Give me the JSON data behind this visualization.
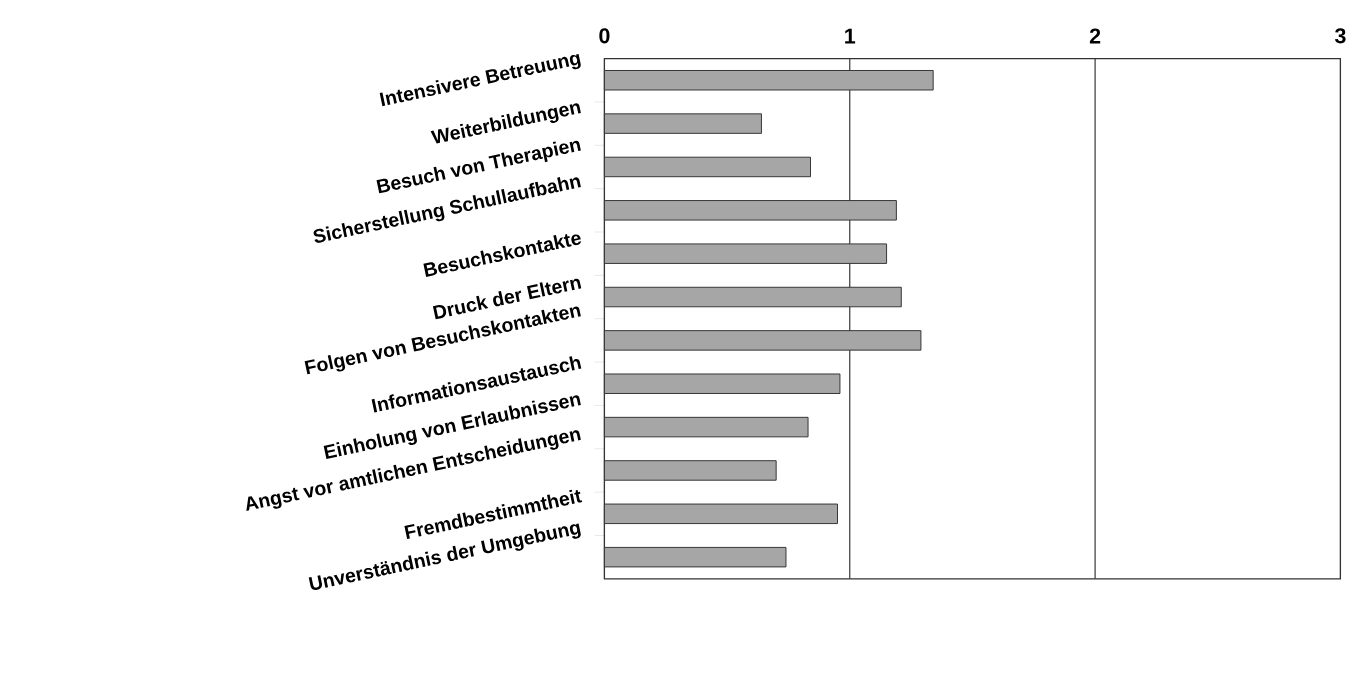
{
  "chart_data": {
    "type": "bar",
    "orientation": "horizontal",
    "categories": [
      "Intensivere Betreuung",
      "Weiterbildungen",
      "Besuch von Therapien",
      "Sicherstellung Schullaufbahn",
      "Besuchskontakte",
      "Druck der Eltern",
      "Folgen von Besuchskontakten",
      "Informationsaustausch",
      "Einholung von Erlaubnissen",
      "Angst vor amtlichen Entscheidungen",
      "Fremdbestimmtheit",
      "Unverständnis der Umgebung"
    ],
    "values": [
      1.34,
      0.64,
      0.84,
      1.19,
      1.15,
      1.21,
      1.29,
      0.96,
      0.83,
      0.7,
      0.95,
      0.74
    ],
    "color": "#a6a6a6",
    "xlim": [
      0,
      3
    ],
    "xticks": [
      0,
      1,
      2,
      3
    ],
    "grid": "x"
  }
}
